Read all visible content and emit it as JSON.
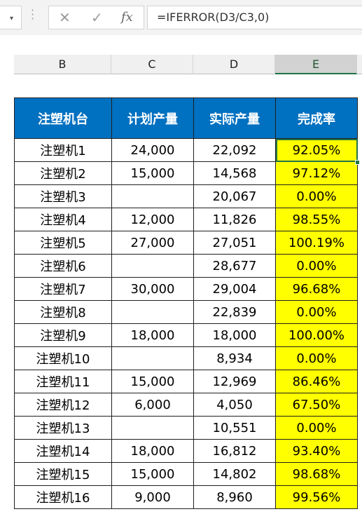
{
  "formula_bar": {
    "name_box_arrow": "▾",
    "cancel_icon": "✕",
    "enter_icon": "✓",
    "fx_label": "fx",
    "formula": "=IFERROR(D3/C3,0)"
  },
  "columns": [
    "B",
    "C",
    "D",
    "E"
  ],
  "selected_column": "E",
  "table": {
    "headers": [
      "注塑机台",
      "计划产量",
      "实际产量",
      "完成率"
    ],
    "rows": [
      [
        "注塑机1",
        "24,000",
        "22,092",
        "92.05%"
      ],
      [
        "注塑机2",
        "15,000",
        "14,568",
        "97.12%"
      ],
      [
        "注塑机3",
        "",
        "20,067",
        "0.00%"
      ],
      [
        "注塑机4",
        "12,000",
        "11,826",
        "98.55%"
      ],
      [
        "注塑机5",
        "27,000",
        "27,051",
        "100.19%"
      ],
      [
        "注塑机6",
        "",
        "28,677",
        "0.00%"
      ],
      [
        "注塑机7",
        "30,000",
        "29,004",
        "96.68%"
      ],
      [
        "注塑机8",
        "",
        "22,839",
        "0.00%"
      ],
      [
        "注塑机9",
        "18,000",
        "18,000",
        "100.00%"
      ],
      [
        "注塑机10",
        "",
        "8,934",
        "0.00%"
      ],
      [
        "注塑机11",
        "15,000",
        "12,969",
        "86.46%"
      ],
      [
        "注塑机12",
        "6,000",
        "4,050",
        "67.50%"
      ],
      [
        "注塑机13",
        "",
        "10,551",
        "0.00%"
      ],
      [
        "注塑机14",
        "18,000",
        "16,812",
        "93.40%"
      ],
      [
        "注塑机15",
        "15,000",
        "14,802",
        "98.68%"
      ],
      [
        "注塑机16",
        "9,000",
        "8,960",
        "99.56%"
      ]
    ]
  },
  "colors": {
    "header_fill": "#0070c0",
    "rate_fill": "#ffff00",
    "selection": "#217346"
  }
}
